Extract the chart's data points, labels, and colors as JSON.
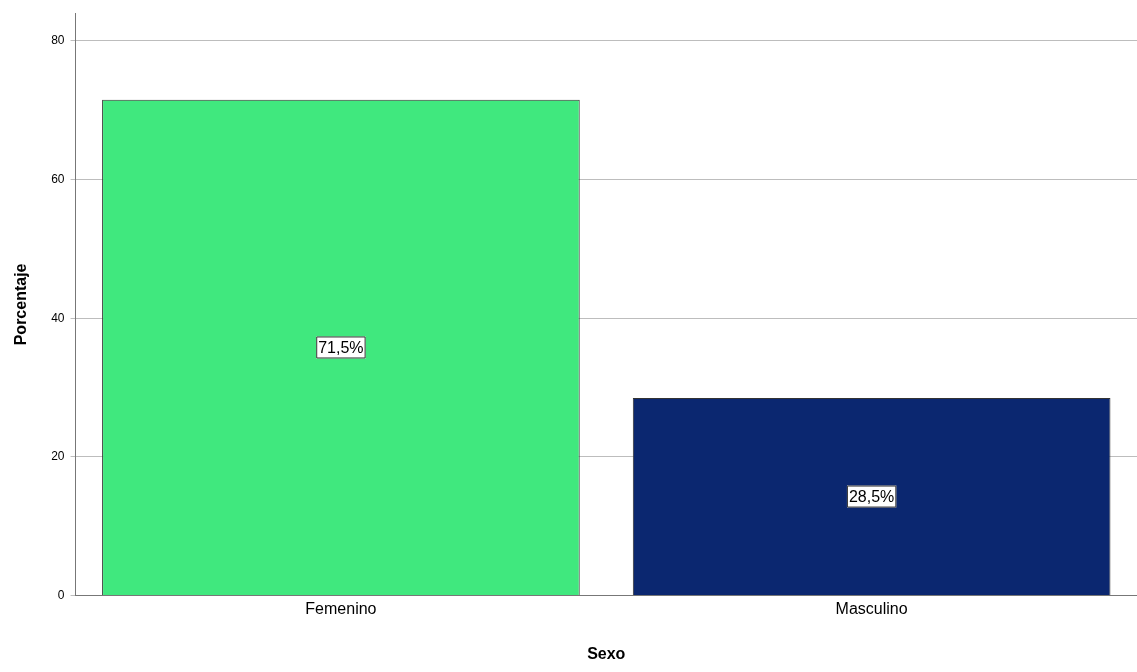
{
  "chart_data": {
    "type": "bar",
    "xlabel": "Sexo",
    "ylabel": "Porcentaje",
    "categories": [
      "Femenino",
      "Masculino"
    ],
    "values": [
      71.5,
      28.5
    ],
    "colors": [
      "#40e87e",
      "#0b2770"
    ],
    "value_labels": [
      "71,5%",
      "28,5%"
    ],
    "ylim": [
      0,
      84
    ],
    "yticks": [
      0,
      20,
      40,
      60,
      80
    ],
    "grid": "y",
    "legend": false
  }
}
